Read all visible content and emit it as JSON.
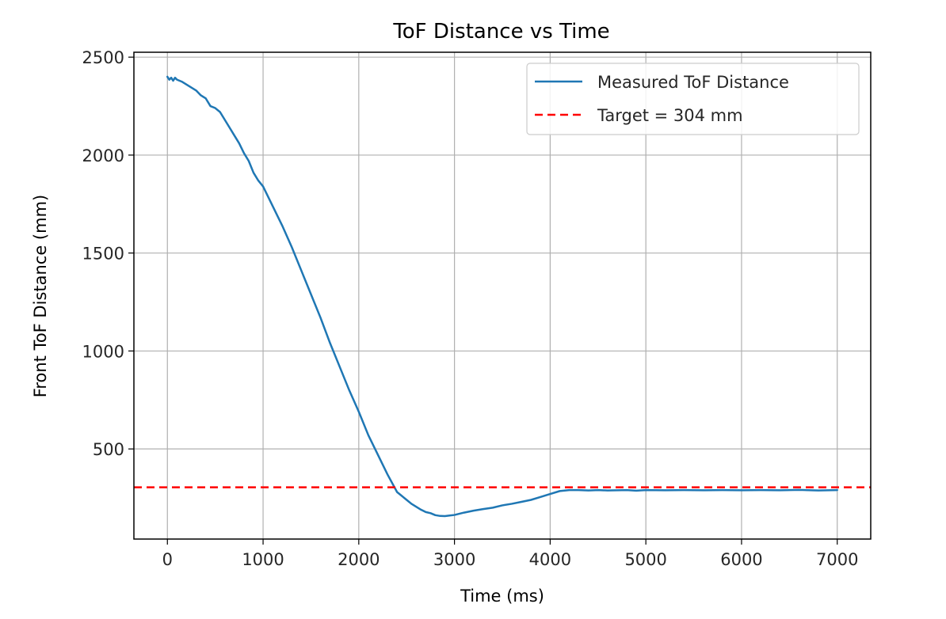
{
  "chart_data": {
    "type": "line",
    "title": "ToF Distance vs Time",
    "xlabel": "Time (ms)",
    "ylabel": "Front ToF Distance (mm)",
    "xlim": [
      -350,
      7350
    ],
    "ylim": [
      40,
      2525
    ],
    "x_ticks": [
      0,
      1000,
      2000,
      3000,
      4000,
      5000,
      6000,
      7000
    ],
    "y_ticks": [
      500,
      1000,
      1500,
      2000,
      2500
    ],
    "grid": true,
    "legend_position": "top-right",
    "series": [
      {
        "name": "Measured ToF Distance",
        "color": "#1f77b4",
        "style": "solid",
        "x": [
          0,
          20,
          40,
          60,
          80,
          100,
          150,
          200,
          250,
          300,
          350,
          400,
          450,
          500,
          550,
          600,
          650,
          700,
          750,
          800,
          850,
          900,
          950,
          1000,
          1100,
          1200,
          1300,
          1400,
          1500,
          1600,
          1700,
          1800,
          1900,
          2000,
          2100,
          2200,
          2300,
          2400,
          2500,
          2550,
          2600,
          2650,
          2700,
          2750,
          2800,
          2850,
          2900,
          2950,
          3000,
          3100,
          3200,
          3300,
          3400,
          3500,
          3600,
          3700,
          3800,
          3900,
          4000,
          4100,
          4200,
          4300,
          4400,
          4500,
          4600,
          4700,
          4800,
          4900,
          5000,
          5200,
          5400,
          5600,
          5800,
          6000,
          6200,
          6400,
          6600,
          6800,
          7000
        ],
        "y": [
          2400,
          2385,
          2395,
          2380,
          2395,
          2385,
          2375,
          2360,
          2345,
          2330,
          2305,
          2290,
          2250,
          2240,
          2220,
          2180,
          2140,
          2100,
          2060,
          2010,
          1970,
          1910,
          1870,
          1840,
          1740,
          1640,
          1530,
          1410,
          1290,
          1170,
          1040,
          920,
          800,
          690,
          570,
          470,
          370,
          280,
          240,
          220,
          205,
          190,
          178,
          172,
          162,
          158,
          157,
          160,
          163,
          175,
          185,
          193,
          200,
          212,
          220,
          230,
          240,
          255,
          270,
          285,
          290,
          290,
          288,
          290,
          288,
          289,
          290,
          287,
          290,
          289,
          290,
          289,
          290,
          289,
          290,
          289,
          291,
          288,
          290
        ]
      },
      {
        "name": "Target = 304 mm",
        "color": "#ff0000",
        "style": "dashed",
        "y_constant": 304
      }
    ]
  }
}
